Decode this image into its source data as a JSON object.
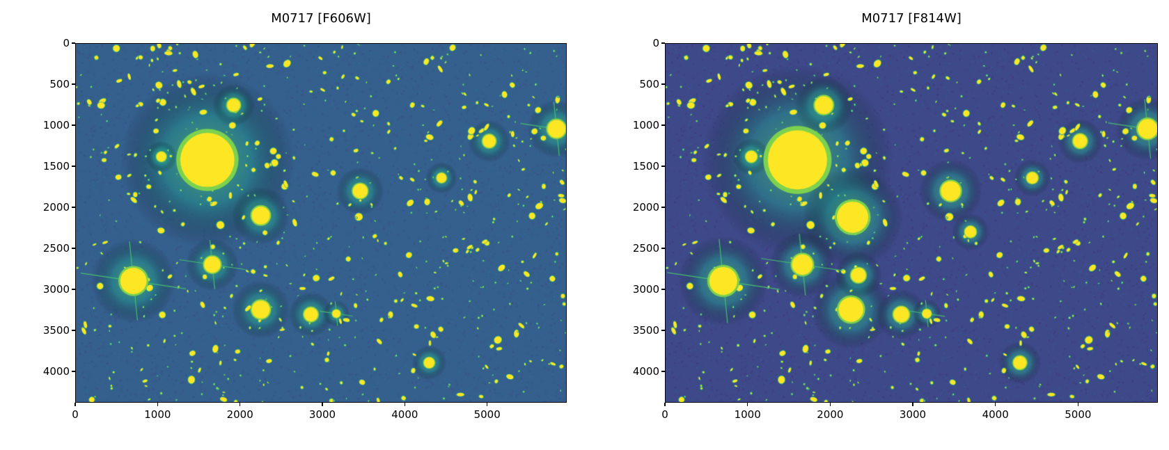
{
  "chart_data": [
    {
      "type": "heatmap",
      "title": "M0717 [F606W]",
      "colormap": "viridis",
      "background_level": 0.3,
      "xlim": [
        0,
        5966
      ],
      "ylim": [
        4381,
        0
      ],
      "xticks": [
        0,
        1000,
        2000,
        3000,
        4000,
        5000
      ],
      "yticks": [
        0,
        500,
        1000,
        1500,
        2000,
        2500,
        3000,
        3500,
        4000
      ],
      "bright_sources": [
        {
          "x": 1600,
          "y": 1420,
          "r": 330
        },
        {
          "x": 700,
          "y": 2900,
          "r": 160,
          "spikes": true
        },
        {
          "x": 1920,
          "y": 750,
          "r": 80
        },
        {
          "x": 1660,
          "y": 2700,
          "r": 100,
          "spikes": true
        },
        {
          "x": 2250,
          "y": 2100,
          "r": 110
        },
        {
          "x": 2250,
          "y": 3250,
          "r": 110
        },
        {
          "x": 3460,
          "y": 1800,
          "r": 90
        },
        {
          "x": 5850,
          "y": 1040,
          "r": 110,
          "spikes": true
        },
        {
          "x": 5030,
          "y": 1190,
          "r": 80
        },
        {
          "x": 2860,
          "y": 3310,
          "r": 85
        },
        {
          "x": 4300,
          "y": 3900,
          "r": 65
        },
        {
          "x": 1040,
          "y": 1380,
          "r": 60
        },
        {
          "x": 4450,
          "y": 1640,
          "r": 60
        },
        {
          "x": 3170,
          "y": 3300,
          "r": 50,
          "spikes": true
        }
      ]
    },
    {
      "type": "heatmap",
      "title": "M0717 [F814W]",
      "colormap": "viridis",
      "background_level": 0.22,
      "xlim": [
        0,
        5966
      ],
      "ylim": [
        4381,
        0
      ],
      "xticks": [
        0,
        1000,
        2000,
        3000,
        4000,
        5000
      ],
      "yticks": [
        0,
        500,
        1000,
        1500,
        2000,
        2500,
        3000,
        3500,
        4000
      ],
      "bright_sources": [
        {
          "x": 1600,
          "y": 1420,
          "r": 360
        },
        {
          "x": 700,
          "y": 2900,
          "r": 170,
          "spikes": true
        },
        {
          "x": 1920,
          "y": 750,
          "r": 110
        },
        {
          "x": 1660,
          "y": 2700,
          "r": 125,
          "spikes": true
        },
        {
          "x": 2270,
          "y": 2120,
          "r": 190
        },
        {
          "x": 2250,
          "y": 3250,
          "r": 150
        },
        {
          "x": 3460,
          "y": 1800,
          "r": 120
        },
        {
          "x": 5850,
          "y": 1040,
          "r": 120,
          "spikes": true
        },
        {
          "x": 5030,
          "y": 1190,
          "r": 85
        },
        {
          "x": 2860,
          "y": 3310,
          "r": 95
        },
        {
          "x": 4300,
          "y": 3900,
          "r": 80
        },
        {
          "x": 1040,
          "y": 1380,
          "r": 70
        },
        {
          "x": 4450,
          "y": 1640,
          "r": 70
        },
        {
          "x": 3170,
          "y": 3300,
          "r": 55,
          "spikes": true
        },
        {
          "x": 2340,
          "y": 2830,
          "r": 90
        },
        {
          "x": 3700,
          "y": 2300,
          "r": 70
        }
      ]
    }
  ]
}
